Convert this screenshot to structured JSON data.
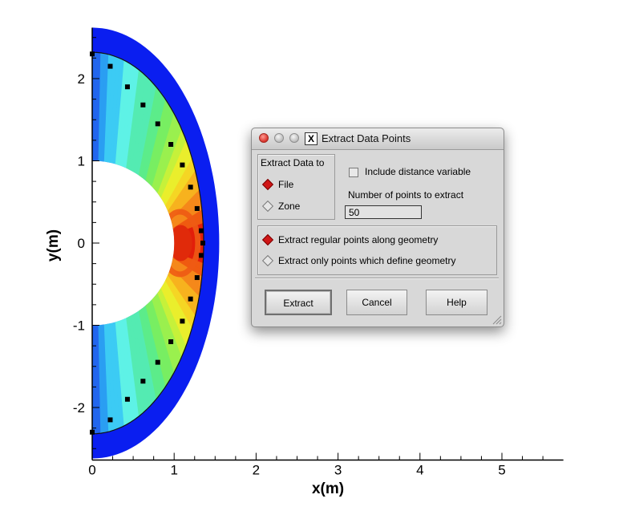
{
  "plot": {
    "x_axis_title": "x(m)",
    "y_axis_title": "y(m)",
    "x_ticks": [
      "0",
      "1",
      "2",
      "3",
      "4",
      "5"
    ],
    "y_ticks": [
      "2",
      "1",
      "0",
      "-1",
      "-2"
    ],
    "x_range": [
      0,
      5.75
    ],
    "y_range": [
      -2.6,
      2.6
    ],
    "colors": {
      "shock_layer": "#0a1ef0",
      "stagnation": "#e21e0a"
    },
    "extraction_points_x": [
      0.0,
      0.22,
      0.43,
      0.62,
      0.8,
      0.96,
      1.1,
      1.2,
      1.28,
      1.33,
      1.35,
      1.33,
      1.28,
      1.2,
      1.1,
      0.96,
      0.8,
      0.62,
      0.43,
      0.22,
      0.0
    ],
    "extraction_points_y": [
      2.3,
      2.15,
      1.9,
      1.68,
      1.45,
      1.2,
      0.95,
      0.68,
      0.42,
      0.15,
      0.0,
      -0.15,
      -0.42,
      -0.68,
      -0.95,
      -1.2,
      -1.45,
      -1.68,
      -1.9,
      -2.15,
      -2.3
    ]
  },
  "dialog": {
    "title": "Extract Data Points",
    "title_icon": "x11-icon",
    "extract_to_label": "Extract Data to",
    "file_label": "File",
    "zone_label": "Zone",
    "selected_destination": "File",
    "include_distance_label": "Include distance variable",
    "include_distance_checked": false,
    "num_points_label": "Number of points to extract",
    "num_points_value": "50",
    "regular_points_label": "Extract regular points along geometry",
    "only_points_label": "Extract only points which define geometry",
    "selected_method": "Extract regular points along geometry",
    "buttons": {
      "extract": "Extract",
      "cancel": "Cancel",
      "help": "Help"
    }
  }
}
